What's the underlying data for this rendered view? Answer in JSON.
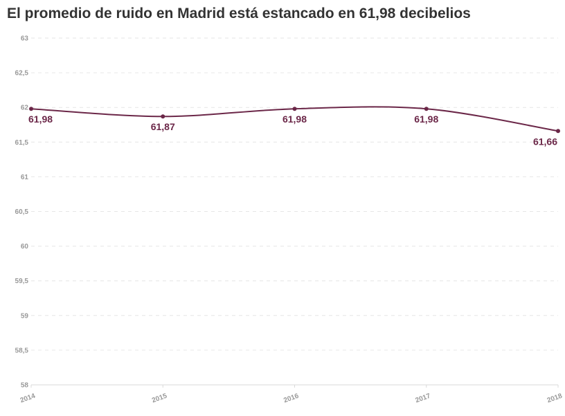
{
  "chart_data": {
    "type": "line",
    "title": "El promedio de ruido en Madrid está estancado en 61,98 decibelios",
    "x": [
      "2014",
      "2015",
      "2016",
      "2017",
      "2018"
    ],
    "series": [
      {
        "values": [
          61.98,
          61.87,
          61.98,
          61.98,
          61.66
        ],
        "labels": [
          "61,98",
          "61,87",
          "61,98",
          "61,98",
          "61,66"
        ]
      }
    ],
    "ylim": [
      58,
      63
    ],
    "yticks": [
      "58",
      "58,5",
      "59",
      "59,5",
      "60",
      "60,5",
      "61",
      "61,5",
      "62",
      "62,5",
      "63"
    ],
    "grid": true,
    "color": "#6b2748"
  }
}
